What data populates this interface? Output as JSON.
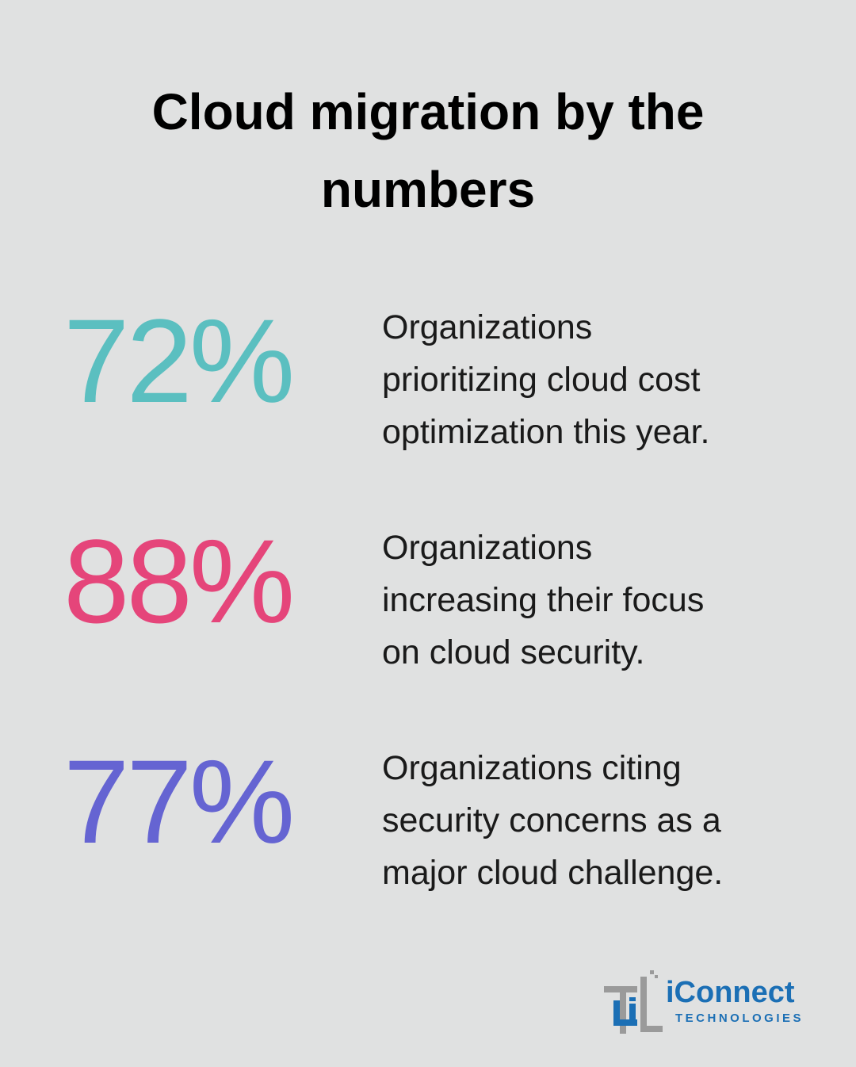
{
  "header": {
    "title": "Cloud migration by the numbers"
  },
  "stats": [
    {
      "value": "72%",
      "color": "#5bbfc0",
      "description_lines": [
        "Organizations",
        "prioritizing cloud cost",
        "optimization this year."
      ]
    },
    {
      "value": "88%",
      "color": "#e5457a",
      "description_lines": [
        "Organizations",
        "increasing their focus",
        "on cloud security."
      ]
    },
    {
      "value": "77%",
      "color": "#6564d2",
      "description_lines": [
        "Organizations citing",
        "security concerns as a",
        "major cloud challenge."
      ]
    }
  ],
  "logo": {
    "name": "iConnect",
    "tagline": "TECHNOLOGIES"
  }
}
